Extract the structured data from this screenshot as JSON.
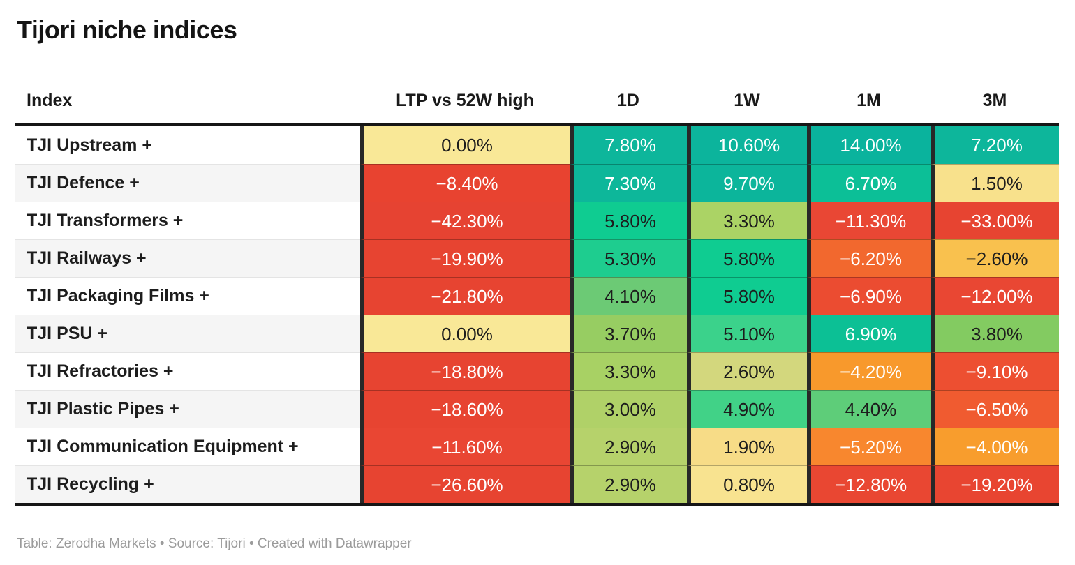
{
  "title": "Tijori niche indices",
  "footer": "Table: Zerodha Markets • Source: Tijori • Created with Datawrapper",
  "colors": {
    "border_dark": "#161616",
    "column_divider": "#282828",
    "row_stripe": "#f5f5f5",
    "positive_teal": "#0db69b",
    "negative_red": "#e74431",
    "neutral_yellow": "#f9e897",
    "footer_gray": "#9b9b9b"
  },
  "table": {
    "columns": [
      "Index",
      "LTP vs 52W high",
      "1D",
      "1W",
      "1M",
      "3M"
    ],
    "rows": [
      {
        "label": "TJI Upstream +",
        "cells": [
          {
            "value": "0.00%",
            "bg": "#f9e897",
            "fg": "#1d1d1d"
          },
          {
            "value": "7.80%",
            "bg": "#0db69b",
            "fg": "#ffffff"
          },
          {
            "value": "10.60%",
            "bg": "#0cb49c",
            "fg": "#ffffff"
          },
          {
            "value": "14.00%",
            "bg": "#0ab39d",
            "fg": "#ffffff"
          },
          {
            "value": "7.20%",
            "bg": "#0db69b",
            "fg": "#ffffff"
          }
        ]
      },
      {
        "label": "TJI Defence +",
        "cells": [
          {
            "value": "−8.40%",
            "bg": "#e84330",
            "fg": "#ffffff"
          },
          {
            "value": "7.30%",
            "bg": "#0db79a",
            "fg": "#ffffff"
          },
          {
            "value": "9.70%",
            "bg": "#0cb59b",
            "fg": "#ffffff"
          },
          {
            "value": "6.70%",
            "bg": "#0cbf97",
            "fg": "#ffffff"
          },
          {
            "value": "1.50%",
            "bg": "#f8e18c",
            "fg": "#1d1d1d"
          }
        ]
      },
      {
        "label": "TJI Transformers +",
        "cells": [
          {
            "value": "−42.30%",
            "bg": "#e64332",
            "fg": "#ffffff"
          },
          {
            "value": "5.80%",
            "bg": "#0fcc91",
            "fg": "#1d1d1d"
          },
          {
            "value": "3.30%",
            "bg": "#abd365",
            "fg": "#1d1d1d"
          },
          {
            "value": "−11.30%",
            "bg": "#e94734",
            "fg": "#ffffff"
          },
          {
            "value": "−33.00%",
            "bg": "#e74431",
            "fg": "#ffffff"
          }
        ]
      },
      {
        "label": "TJI Railways +",
        "cells": [
          {
            "value": "−19.90%",
            "bg": "#e74431",
            "fg": "#ffffff"
          },
          {
            "value": "5.30%",
            "bg": "#1ecd8f",
            "fg": "#1d1d1d"
          },
          {
            "value": "5.80%",
            "bg": "#0fcc91",
            "fg": "#1d1d1d"
          },
          {
            "value": "−6.20%",
            "bg": "#f2682e",
            "fg": "#ffffff"
          },
          {
            "value": "−2.60%",
            "bg": "#f9c14e",
            "fg": "#1d1d1d"
          }
        ]
      },
      {
        "label": "TJI Packaging Films +",
        "cells": [
          {
            "value": "−21.80%",
            "bg": "#e74431",
            "fg": "#ffffff"
          },
          {
            "value": "4.10%",
            "bg": "#6cca75",
            "fg": "#1d1d1d"
          },
          {
            "value": "5.80%",
            "bg": "#0fcc91",
            "fg": "#1d1d1d"
          },
          {
            "value": "−6.90%",
            "bg": "#eb4c31",
            "fg": "#ffffff"
          },
          {
            "value": "−12.00%",
            "bg": "#e94733",
            "fg": "#ffffff"
          }
        ]
      },
      {
        "label": "TJI PSU +",
        "cells": [
          {
            "value": "0.00%",
            "bg": "#f9e897",
            "fg": "#1d1d1d"
          },
          {
            "value": "3.70%",
            "bg": "#97cd62",
            "fg": "#1d1d1d"
          },
          {
            "value": "5.10%",
            "bg": "#3bd28b",
            "fg": "#1d1d1d"
          },
          {
            "value": "6.90%",
            "bg": "#0cc095",
            "fg": "#ffffff"
          },
          {
            "value": "3.80%",
            "bg": "#83cb61",
            "fg": "#1d1d1d"
          }
        ]
      },
      {
        "label": "TJI Refractories +",
        "cells": [
          {
            "value": "−18.80%",
            "bg": "#e74431",
            "fg": "#ffffff"
          },
          {
            "value": "3.30%",
            "bg": "#a8d164",
            "fg": "#1d1d1d"
          },
          {
            "value": "2.60%",
            "bg": "#d3d77d",
            "fg": "#1d1d1d"
          },
          {
            "value": "−4.20%",
            "bg": "#f8992c",
            "fg": "#ffffff"
          },
          {
            "value": "−9.10%",
            "bg": "#ed4f31",
            "fg": "#ffffff"
          }
        ]
      },
      {
        "label": "TJI Plastic Pipes +",
        "cells": [
          {
            "value": "−18.60%",
            "bg": "#e74431",
            "fg": "#ffffff"
          },
          {
            "value": "3.00%",
            "bg": "#b0d168",
            "fg": "#1d1d1d"
          },
          {
            "value": "4.90%",
            "bg": "#41d287",
            "fg": "#1d1d1d"
          },
          {
            "value": "4.40%",
            "bg": "#5ecd79",
            "fg": "#1d1d1d"
          },
          {
            "value": "−6.50%",
            "bg": "#f05b30",
            "fg": "#ffffff"
          }
        ]
      },
      {
        "label": "TJI Communication Equipment +",
        "cells": [
          {
            "value": "−11.60%",
            "bg": "#e94633",
            "fg": "#ffffff"
          },
          {
            "value": "2.90%",
            "bg": "#b6d26b",
            "fg": "#1d1d1d"
          },
          {
            "value": "1.90%",
            "bg": "#f7dc87",
            "fg": "#1d1d1d"
          },
          {
            "value": "−5.20%",
            "bg": "#f8872e",
            "fg": "#ffffff"
          },
          {
            "value": "−4.00%",
            "bg": "#f89d2d",
            "fg": "#ffffff"
          }
        ]
      },
      {
        "label": "TJI Recycling +",
        "cells": [
          {
            "value": "−26.60%",
            "bg": "#e74431",
            "fg": "#ffffff"
          },
          {
            "value": "2.90%",
            "bg": "#b6d26b",
            "fg": "#1d1d1d"
          },
          {
            "value": "0.80%",
            "bg": "#f8e390",
            "fg": "#1d1d1d"
          },
          {
            "value": "−12.80%",
            "bg": "#e94732",
            "fg": "#ffffff"
          },
          {
            "value": "−19.20%",
            "bg": "#e84531",
            "fg": "#ffffff"
          }
        ]
      }
    ]
  },
  "chart_data": {
    "type": "table",
    "title": "Tijori niche indices",
    "columns": [
      "Index",
      "LTP vs 52W high",
      "1D",
      "1W",
      "1M",
      "3M"
    ],
    "unit": "%",
    "color_scale": "red-yellow-green heatmap, negative=red/orange, near-zero=yellow, positive=green/teal",
    "rows": [
      [
        "TJI Upstream +",
        0.0,
        7.8,
        10.6,
        14.0,
        7.2
      ],
      [
        "TJI Defence +",
        -8.4,
        7.3,
        9.7,
        6.7,
        1.5
      ],
      [
        "TJI Transformers +",
        -42.3,
        5.8,
        3.3,
        -11.3,
        -33.0
      ],
      [
        "TJI Railways +",
        -19.9,
        5.3,
        5.8,
        -6.2,
        -2.6
      ],
      [
        "TJI Packaging Films +",
        -21.8,
        4.1,
        5.8,
        -6.9,
        -12.0
      ],
      [
        "TJI PSU +",
        0.0,
        3.7,
        5.1,
        6.9,
        3.8
      ],
      [
        "TJI Refractories +",
        -18.8,
        3.3,
        2.6,
        -4.2,
        -9.1
      ],
      [
        "TJI Plastic Pipes +",
        -18.6,
        3.0,
        4.9,
        4.4,
        -6.5
      ],
      [
        "TJI Communication Equipment +",
        -11.6,
        2.9,
        1.9,
        -5.2,
        -4.0
      ],
      [
        "TJI Recycling +",
        -26.6,
        2.9,
        0.8,
        -12.8,
        -19.2
      ]
    ]
  }
}
